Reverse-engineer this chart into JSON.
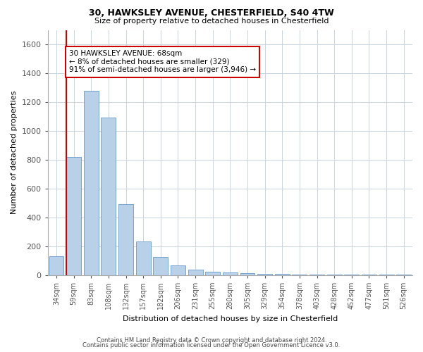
{
  "title1": "30, HAWKSLEY AVENUE, CHESTERFIELD, S40 4TW",
  "title2": "Size of property relative to detached houses in Chesterfield",
  "xlabel": "Distribution of detached houses by size in Chesterfield",
  "ylabel": "Number of detached properties",
  "categories": [
    "34sqm",
    "59sqm",
    "83sqm",
    "108sqm",
    "132sqm",
    "157sqm",
    "182sqm",
    "206sqm",
    "231sqm",
    "255sqm",
    "280sqm",
    "305sqm",
    "329sqm",
    "354sqm",
    "378sqm",
    "403sqm",
    "428sqm",
    "452sqm",
    "477sqm",
    "501sqm",
    "526sqm"
  ],
  "values": [
    130,
    820,
    1280,
    1090,
    490,
    235,
    125,
    65,
    38,
    25,
    18,
    12,
    10,
    8,
    5,
    3,
    2,
    2,
    2,
    2,
    2
  ],
  "bar_color": "#b8d0e8",
  "bar_edge_color": "#6699cc",
  "highlight_line_color": "#cc0000",
  "annotation_text": "30 HAWKSLEY AVENUE: 68sqm\n← 8% of detached houses are smaller (329)\n91% of semi-detached houses are larger (3,946) →",
  "annotation_box_color": "#ffffff",
  "annotation_box_edge": "#cc0000",
  "ylim": [
    0,
    1700
  ],
  "yticks": [
    0,
    200,
    400,
    600,
    800,
    1000,
    1200,
    1400,
    1600
  ],
  "footer1": "Contains HM Land Registry data © Crown copyright and database right 2024.",
  "footer2": "Contains public sector information licensed under the Open Government Licence v3.0.",
  "bg_color": "#ffffff",
  "grid_color": "#c8d4e0"
}
